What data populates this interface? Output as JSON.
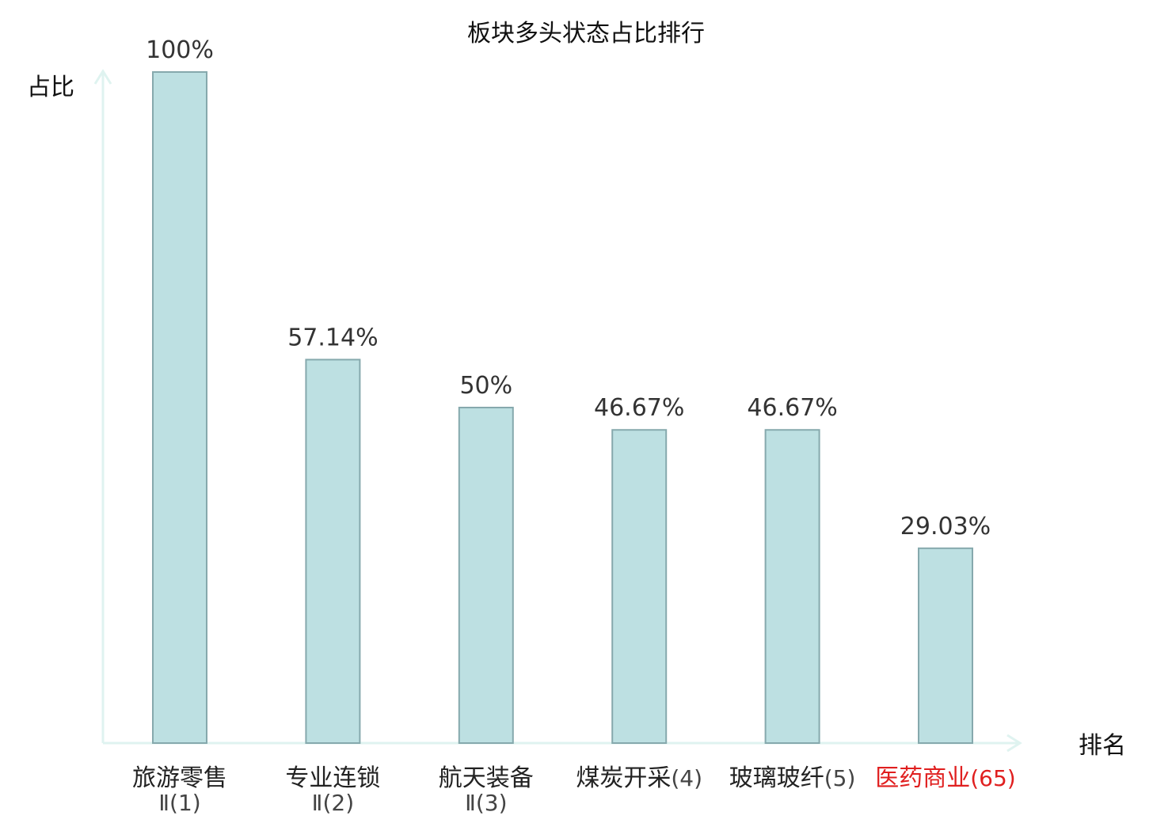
{
  "chart_data": {
    "type": "bar",
    "title": "板块多头状态占比排行",
    "xlabel": "排名",
    "ylabel": "占比",
    "ylim": [
      0,
      100
    ],
    "grid": false,
    "legend": "none",
    "categories": [
      {
        "name": "旅游零售",
        "rank_suffix": "Ⅱ(1)",
        "highlight": false
      },
      {
        "name": "专业连锁",
        "rank_suffix": "Ⅱ(2)",
        "highlight": false
      },
      {
        "name": "航天装备",
        "rank_suffix": "Ⅱ(3)",
        "highlight": false
      },
      {
        "name": "煤炭开采",
        "rank_suffix": "(4)",
        "highlight": false
      },
      {
        "name": "玻璃玻纤",
        "rank_suffix": "(5)",
        "highlight": false
      },
      {
        "name": "医药商业",
        "rank_suffix": "(65)",
        "highlight": true
      }
    ],
    "values": [
      100,
      57.14,
      50,
      46.67,
      46.67,
      29.03
    ],
    "value_labels": [
      "100%",
      "57.14%",
      "50%",
      "46.67%",
      "46.67%",
      "29.03%"
    ],
    "colors": {
      "bar_fill": "#bde0e2",
      "bar_stroke": "#86a9ad",
      "axis": "#dff3f0",
      "label_text": "#222222",
      "label_suffix": "#444444",
      "highlight": "#e01f1f"
    }
  }
}
